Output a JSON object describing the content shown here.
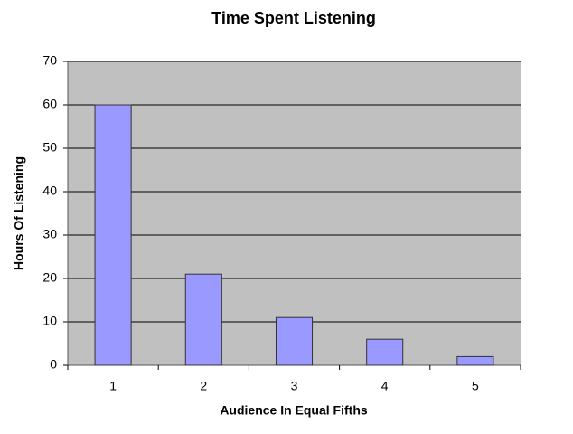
{
  "chart_data": {
    "type": "bar",
    "title": "Time Spent Listening",
    "x_label": "Audience In Equal Fifths",
    "y_label": "Hours Of Listening",
    "categories": [
      "1",
      "2",
      "3",
      "4",
      "5"
    ],
    "values": [
      60,
      21,
      11,
      6,
      2
    ],
    "color": "#9999ff",
    "ylim": [
      0,
      70
    ],
    "yticks": [
      0,
      10,
      20,
      30,
      40,
      50,
      60,
      70
    ],
    "grid": true
  }
}
